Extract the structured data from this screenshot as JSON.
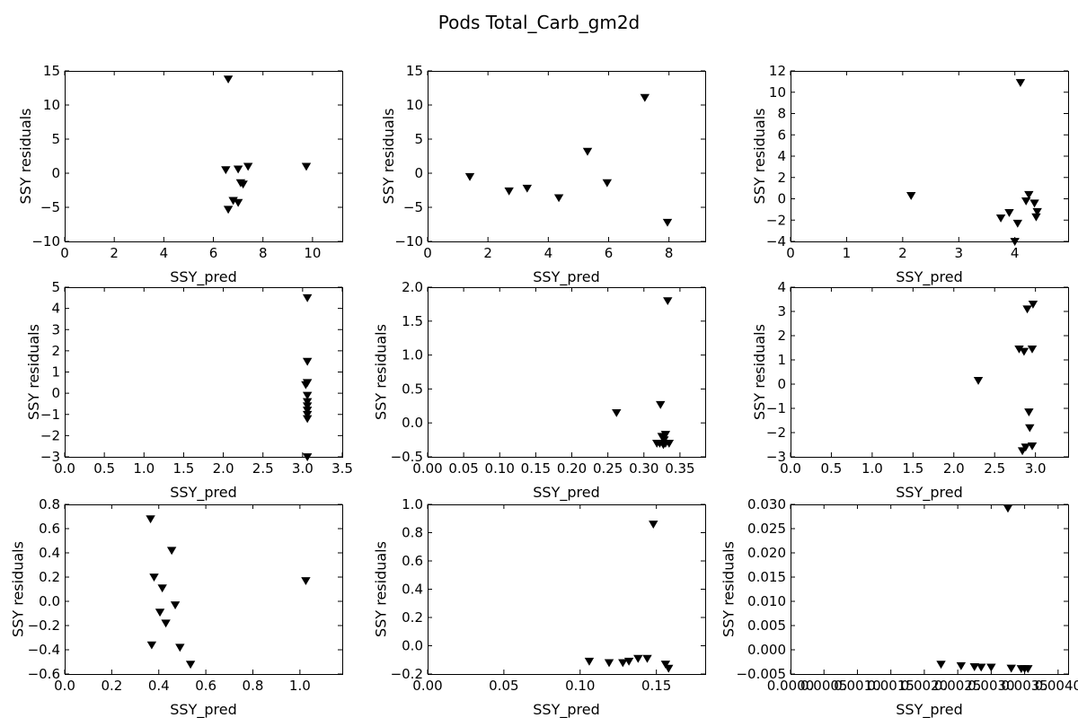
{
  "figure": {
    "title": "Pods Total_Carb_gm2d"
  },
  "chart_data": [
    {
      "type": "scatter",
      "xlabel": "SSY_pred",
      "ylabel": "SSY residuals",
      "xlim": [
        0,
        11.2
      ],
      "ylim": [
        -10,
        15
      ],
      "xticks": [
        0,
        2,
        4,
        6,
        8,
        10
      ],
      "xticklabels": [
        "0",
        "2",
        "4",
        "6",
        "8",
        "10"
      ],
      "yticks": [
        -10,
        -5,
        0,
        5,
        10,
        15
      ],
      "yticklabels": [
        "−10",
        "−5",
        "0",
        "5",
        "10",
        "15"
      ],
      "x": [
        6.6,
        6.5,
        7.0,
        7.4,
        7.1,
        7.2,
        6.8,
        7.0,
        6.6,
        9.75
      ],
      "y": [
        13.8,
        0.5,
        0.6,
        1.0,
        -1.4,
        -1.6,
        -4.0,
        -4.3,
        -5.3,
        1.0
      ]
    },
    {
      "type": "scatter",
      "xlabel": "SSY_pred",
      "ylabel": "SSY residuals",
      "xlim": [
        0,
        9.2
      ],
      "ylim": [
        -10,
        15
      ],
      "xticks": [
        0,
        2,
        4,
        6,
        8
      ],
      "xticklabels": [
        "0",
        "2",
        "4",
        "6",
        "8"
      ],
      "yticks": [
        -10,
        -5,
        0,
        5,
        10,
        15
      ],
      "yticklabels": [
        "−10",
        "−5",
        "0",
        "5",
        "10",
        "15"
      ],
      "x": [
        1.4,
        2.7,
        3.3,
        4.35,
        5.3,
        5.95,
        7.2,
        7.95
      ],
      "y": [
        -0.5,
        -2.6,
        -2.2,
        -3.6,
        3.2,
        -1.4,
        11.1,
        -7.2
      ]
    },
    {
      "type": "scatter",
      "xlabel": "SSY_pred",
      "ylabel": "SSY residuals",
      "xlim": [
        0,
        4.95
      ],
      "ylim": [
        -4,
        12
      ],
      "xticks": [
        0,
        1,
        2,
        3,
        4
      ],
      "xticklabels": [
        "0",
        "1",
        "2",
        "3",
        "4"
      ],
      "yticks": [
        -4,
        -2,
        0,
        2,
        4,
        6,
        8,
        10,
        12
      ],
      "yticklabels": [
        "−4",
        "−2",
        "0",
        "2",
        "4",
        "6",
        "8",
        "10",
        "12"
      ],
      "x": [
        2.15,
        4.1,
        4.25,
        4.2,
        4.35,
        3.9,
        4.4,
        3.75,
        4.05,
        4.38,
        4.0
      ],
      "y": [
        0.3,
        10.9,
        0.4,
        -0.2,
        -0.4,
        -1.3,
        -1.2,
        -1.8,
        -2.3,
        -1.7,
        -4.0
      ]
    },
    {
      "type": "scatter",
      "xlabel": "SSY_pred",
      "ylabel": "SSY residuals",
      "xlim": [
        0,
        3.5
      ],
      "ylim": [
        -3,
        5
      ],
      "xticks": [
        0,
        0.5,
        1,
        1.5,
        2,
        2.5,
        3,
        3.5
      ],
      "xticklabels": [
        "0.0",
        "0.5",
        "1.0",
        "1.5",
        "2.0",
        "2.5",
        "3.0",
        "3.5"
      ],
      "yticks": [
        -3,
        -2,
        -1,
        0,
        1,
        2,
        3,
        4,
        5
      ],
      "yticklabels": [
        "−3",
        "−2",
        "−1",
        "0",
        "1",
        "2",
        "3",
        "4",
        "5"
      ],
      "x": [
        3.06,
        3.06,
        3.06,
        3.04,
        3.06,
        3.06,
        3.06,
        3.06,
        3.06,
        3.06,
        3.06
      ],
      "y": [
        4.5,
        1.5,
        0.5,
        0.4,
        -0.1,
        -0.4,
        -0.6,
        -0.8,
        -1.0,
        -1.2,
        -3.0
      ]
    },
    {
      "type": "scatter",
      "xlabel": "SSY_pred",
      "ylabel": "SSY residuals",
      "xlim": [
        0,
        0.385
      ],
      "ylim": [
        -0.5,
        2.0
      ],
      "xticks": [
        0,
        0.05,
        0.1,
        0.15,
        0.2,
        0.25,
        0.3,
        0.35
      ],
      "xticklabels": [
        "0.00",
        "0.05",
        "0.10",
        "0.15",
        "0.20",
        "0.25",
        "0.30",
        "0.35"
      ],
      "yticks": [
        -0.5,
        0,
        0.5,
        1.0,
        1.5,
        2.0
      ],
      "yticklabels": [
        "−0.5",
        "0.0",
        "0.5",
        "1.0",
        "1.5",
        "2.0"
      ],
      "x": [
        0.333,
        0.262,
        0.323,
        0.33,
        0.325,
        0.328,
        0.318,
        0.322,
        0.33,
        0.335,
        0.327
      ],
      "y": [
        1.8,
        0.15,
        0.27,
        -0.17,
        -0.2,
        -0.25,
        -0.3,
        -0.3,
        -0.3,
        -0.3,
        -0.32
      ]
    },
    {
      "type": "scatter",
      "xlabel": "SSY_pred",
      "ylabel": "SSY residuals",
      "xlim": [
        0,
        3.4
      ],
      "ylim": [
        -3,
        4
      ],
      "xticks": [
        0,
        0.5,
        1,
        1.5,
        2,
        2.5,
        3
      ],
      "xticklabels": [
        "0.0",
        "0.5",
        "1.0",
        "1.5",
        "2.0",
        "2.5",
        "3.0"
      ],
      "yticks": [
        -3,
        -2,
        -1,
        0,
        1,
        2,
        3,
        4
      ],
      "yticklabels": [
        "−3",
        "−2",
        "−1",
        "0",
        "1",
        "2",
        "3",
        "4"
      ],
      "x": [
        2.3,
        2.97,
        2.9,
        2.8,
        2.86,
        2.96,
        2.92,
        2.93,
        2.96,
        2.88,
        2.84
      ],
      "y": [
        0.15,
        3.3,
        3.1,
        1.45,
        1.35,
        1.45,
        -1.15,
        -1.8,
        -2.55,
        -2.6,
        -2.75
      ]
    },
    {
      "type": "scatter",
      "xlabel": "SSY_pred",
      "ylabel": "SSY residuals",
      "xlim": [
        0,
        1.18
      ],
      "ylim": [
        -0.6,
        0.8
      ],
      "xticks": [
        0,
        0.2,
        0.4,
        0.6,
        0.8,
        1.0
      ],
      "xticklabels": [
        "0.0",
        "0.2",
        "0.4",
        "0.6",
        "0.8",
        "1.0"
      ],
      "yticks": [
        -0.6,
        -0.4,
        -0.2,
        0,
        0.2,
        0.4,
        0.6,
        0.8
      ],
      "yticklabels": [
        "−0.6",
        "−0.4",
        "−0.2",
        "0.0",
        "0.2",
        "0.4",
        "0.6",
        "0.8"
      ],
      "x": [
        0.365,
        0.455,
        0.38,
        0.415,
        0.47,
        0.405,
        0.43,
        0.37,
        0.49,
        0.535,
        1.025
      ],
      "y": [
        0.68,
        0.42,
        0.2,
        0.11,
        -0.03,
        -0.09,
        -0.18,
        -0.36,
        -0.38,
        -0.52,
        0.17
      ]
    },
    {
      "type": "scatter",
      "xlabel": "SSY_pred",
      "ylabel": "SSY residuals",
      "xlim": [
        0,
        0.182
      ],
      "ylim": [
        -0.2,
        1.0
      ],
      "xticks": [
        0,
        0.05,
        0.1,
        0.15
      ],
      "xticklabels": [
        "0.00",
        "0.05",
        "0.10",
        "0.15"
      ],
      "yticks": [
        -0.2,
        0,
        0.2,
        0.4,
        0.6,
        0.8,
        1.0
      ],
      "yticklabels": [
        "−0.2",
        "0.0",
        "0.2",
        "0.4",
        "0.6",
        "0.8",
        "1.0"
      ],
      "x": [
        0.148,
        0.106,
        0.119,
        0.128,
        0.132,
        0.138,
        0.144,
        0.156,
        0.158
      ],
      "y": [
        0.86,
        -0.11,
        -0.12,
        -0.12,
        -0.11,
        -0.09,
        -0.09,
        -0.13,
        -0.16
      ]
    },
    {
      "type": "scatter",
      "xlabel": "SSY_pred",
      "ylabel": "SSY residuals",
      "xlim": [
        0,
        0.00415
      ],
      "ylim": [
        -0.005,
        0.03
      ],
      "xticks": [
        0,
        0.0005,
        0.001,
        0.0015,
        0.002,
        0.0025,
        0.003,
        0.0035,
        0.004
      ],
      "xticklabels": [
        "0.0000",
        "0.0005",
        "0.0010",
        "0.0015",
        "0.0020",
        "0.0025",
        "0.0030",
        "0.0035",
        "0.0040"
      ],
      "yticks": [
        -0.005,
        0,
        0.005,
        0.01,
        0.015,
        0.02,
        0.025,
        0.03
      ],
      "yticklabels": [
        "−0.005",
        "0.000",
        "0.005",
        "0.010",
        "0.015",
        "0.020",
        "0.025",
        "0.030"
      ],
      "x": [
        0.00325,
        0.00225,
        0.00255,
        0.00275,
        0.00285,
        0.003,
        0.0033,
        0.00345,
        0.0035,
        0.00355
      ],
      "y": [
        0.0292,
        -0.003,
        -0.0033,
        -0.0035,
        -0.0036,
        -0.0036,
        -0.0038,
        -0.0039,
        -0.0039,
        -0.0039
      ]
    }
  ]
}
